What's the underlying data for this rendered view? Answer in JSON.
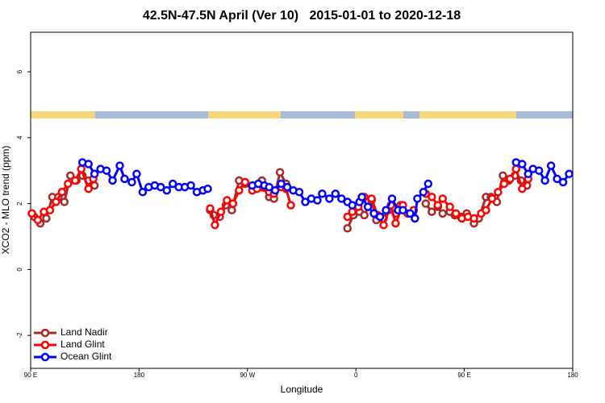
{
  "chart_data": {
    "type": "line",
    "title": "42.5N-47.5N April (Ver 10)   2015-01-01 to 2020-12-18",
    "x_label": "Longitude",
    "y_label": "XCO2 - MLO trend (ppm)",
    "xlim": [
      90,
      540
    ],
    "ylim": [
      -3,
      7.2
    ],
    "xticks": [
      {
        "value": 90,
        "label": "90 E"
      },
      180,
      {
        "value": 270,
        "label": "90 W"
      },
      {
        "value": 360,
        "label": "0"
      },
      {
        "value": 450,
        "label": "90 E"
      },
      {
        "value": 540,
        "label": "180"
      }
    ],
    "yticks": [
      -2,
      0,
      2,
      4,
      6
    ],
    "legend": "bottomleft",
    "series": [
      {
        "name": "Land Nadir",
        "color": "#a52a2a",
        "x": [
          93,
          98,
          103,
          108,
          113,
          118,
          123,
          128,
          133,
          138,
          143,
          null,
          239,
          242,
          247,
          252,
          257,
          263,
          268,
          278,
          282,
          288,
          292,
          297,
          302,
          null,
          353,
          358,
          363,
          367,
          373,
          377,
          383,
          387,
          393,
          397,
          null,
          418,
          423,
          428,
          432,
          438,
          442,
          447,
          452,
          458,
          462,
          468,
          472,
          477,
          482,
          487,
          492,
          497,
          502
        ],
        "values": [
          1.6,
          1.4,
          1.55,
          2.2,
          2.2,
          2.05,
          2.85,
          2.7,
          2.85,
          2.7,
          2.55,
          null,
          1.8,
          1.65,
          1.6,
          1.95,
          1.8,
          2.7,
          2.6,
          2.5,
          2.7,
          2.2,
          2.15,
          2.95,
          2.6,
          null,
          1.25,
          1.65,
          1.75,
          1.65,
          2.1,
          1.5,
          1.55,
          1.8,
          1.7,
          1.95,
          null,
          2.0,
          1.75,
          1.9,
          1.7,
          1.75,
          1.65,
          1.6,
          1.7,
          1.4,
          1.55,
          2.2,
          2.2,
          2.05,
          2.85,
          2.7,
          2.85,
          2.7,
          2.55
        ]
      },
      {
        "name": "Land Glint",
        "color": "#ff0000",
        "x": [
          91,
          96,
          101,
          106,
          111,
          116,
          121,
          127,
          132,
          138,
          142,
          null,
          239,
          243,
          248,
          253,
          258,
          263,
          268,
          274,
          278,
          288,
          292,
          298,
          302,
          306,
          null,
          353,
          357,
          362,
          367,
          373,
          378,
          383,
          389,
          393,
          399,
          403,
          408,
          null,
          418,
          423,
          428,
          432,
          438,
          443,
          448,
          453,
          458,
          464,
          468,
          473,
          478,
          483,
          488,
          493,
          498,
          503
        ],
        "values": [
          1.7,
          1.5,
          1.75,
          1.8,
          2.05,
          2.35,
          2.6,
          2.7,
          3.05,
          2.45,
          2.75,
          null,
          1.85,
          1.35,
          1.75,
          2.1,
          2.0,
          2.4,
          2.65,
          2.4,
          2.45,
          2.35,
          2.3,
          2.5,
          2.45,
          1.95,
          null,
          1.6,
          1.75,
          1.9,
          2.2,
          2.15,
          1.65,
          1.35,
          1.95,
          1.4,
          1.95,
          1.7,
          1.8,
          null,
          2.3,
          2.2,
          1.95,
          2.15,
          1.9,
          1.7,
          1.55,
          1.6,
          1.55,
          1.7,
          1.8,
          2.15,
          2.35,
          2.6,
          2.75,
          3.05,
          2.45,
          2.75
        ]
      },
      {
        "name": "Ocean Glint",
        "color": "#0000ff",
        "x": [
          133,
          138,
          143,
          148,
          153,
          158,
          164,
          168,
          174,
          178,
          183,
          188,
          193,
          198,
          203,
          208,
          213,
          218,
          223,
          228,
          233,
          237,
          null,
          274,
          279,
          284,
          288,
          293,
          298,
          303,
          308,
          313,
          318,
          323,
          328,
          332,
          338,
          343,
          348,
          353,
          357,
          363,
          365,
          370,
          375,
          380,
          385,
          390,
          395,
          399,
          405,
          409,
          411,
          416,
          420,
          null,
          493,
          498,
          503,
          507,
          512,
          517,
          522,
          527,
          532,
          537
        ],
        "values": [
          3.25,
          3.2,
          2.9,
          3.05,
          3.0,
          2.7,
          3.15,
          2.75,
          2.65,
          2.9,
          2.35,
          2.5,
          2.55,
          2.5,
          2.4,
          2.6,
          2.5,
          2.5,
          2.55,
          2.35,
          2.4,
          2.45,
          null,
          2.55,
          2.6,
          2.55,
          2.5,
          2.4,
          2.6,
          2.5,
          2.4,
          2.35,
          2.05,
          2.15,
          2.1,
          2.3,
          2.15,
          2.3,
          2.15,
          2.05,
          1.95,
          2.05,
          2.2,
          1.9,
          1.7,
          1.6,
          1.8,
          2.15,
          1.8,
          1.8,
          1.7,
          1.55,
          2.15,
          2.35,
          2.6,
          null,
          3.25,
          3.2,
          2.9,
          3.05,
          3.0,
          2.7,
          3.15,
          2.75,
          2.65,
          2.9
        ]
      }
    ]
  }
}
